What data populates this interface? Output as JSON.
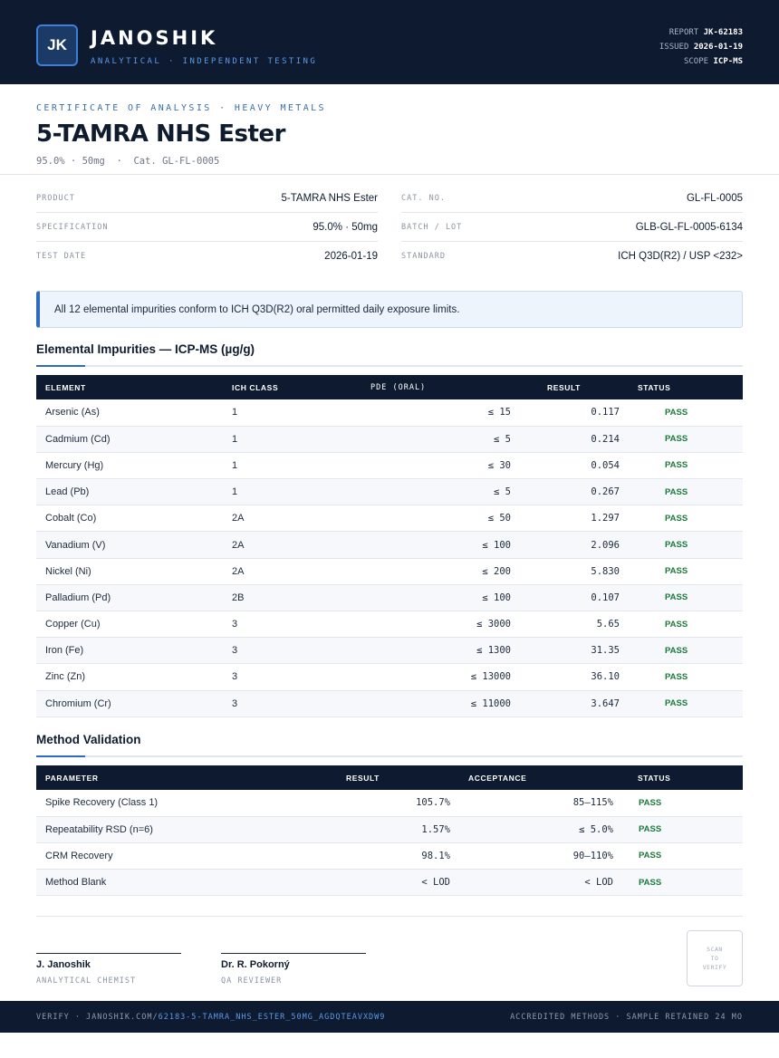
{
  "header": {
    "logo_initials": "JK",
    "brand": "JANOSHIK",
    "brand_sub": "ANALYTICAL · INDEPENDENT TESTING",
    "meta": [
      {
        "label": "REPORT",
        "value": "JK-62183"
      },
      {
        "label": "ISSUED",
        "value": "2026-01-19"
      },
      {
        "label": "SCOPE",
        "value": "ICP-MS"
      }
    ]
  },
  "doc": {
    "eyebrow": "CERTIFICATE OF ANALYSIS · HEAVY METALS",
    "title": "5-TAMRA NHS Ester",
    "subtitle": "95.0% · 50mg  ·  Cat. GL-FL-0005"
  },
  "info": {
    "left": [
      {
        "label": "PRODUCT",
        "value": "5-TAMRA NHS Ester"
      },
      {
        "label": "SPECIFICATION",
        "value": "95.0% · 50mg"
      },
      {
        "label": "TEST DATE",
        "value": "2026-01-19"
      }
    ],
    "right": [
      {
        "label": "CAT. NO.",
        "value": "GL-FL-0005"
      },
      {
        "label": "BATCH / LOT",
        "value": "GLB-GL-FL-0005-6134"
      },
      {
        "label": "STANDARD",
        "value": "ICH Q3D(R2) / USP <232>"
      }
    ]
  },
  "notice": "All 12 elemental impurities conform to ICH Q3D(R2) oral permitted daily exposure limits.",
  "impurities": {
    "title": "Elemental Impurities — ICP-MS (µg/g)",
    "headers": [
      "ELEMENT",
      "ICH CLASS",
      "PDE (ORAL)",
      "RESULT",
      "STATUS"
    ],
    "rows": [
      [
        "Arsenic (As)",
        "1",
        "≤ 15",
        "0.117",
        "PASS"
      ],
      [
        "Cadmium (Cd)",
        "1",
        "≤ 5",
        "0.214",
        "PASS"
      ],
      [
        "Mercury (Hg)",
        "1",
        "≤ 30",
        "0.054",
        "PASS"
      ],
      [
        "Lead (Pb)",
        "1",
        "≤ 5",
        "0.267",
        "PASS"
      ],
      [
        "Cobalt (Co)",
        "2A",
        "≤ 50",
        "1.297",
        "PASS"
      ],
      [
        "Vanadium (V)",
        "2A",
        "≤ 100",
        "2.096",
        "PASS"
      ],
      [
        "Nickel (Ni)",
        "2A",
        "≤ 200",
        "5.830",
        "PASS"
      ],
      [
        "Palladium (Pd)",
        "2B",
        "≤ 100",
        "0.107",
        "PASS"
      ],
      [
        "Copper (Cu)",
        "3",
        "≤ 3000",
        "5.65",
        "PASS"
      ],
      [
        "Iron (Fe)",
        "3",
        "≤ 1300",
        "31.35",
        "PASS"
      ],
      [
        "Zinc (Zn)",
        "3",
        "≤ 13000",
        "36.10",
        "PASS"
      ],
      [
        "Chromium (Cr)",
        "3",
        "≤ 11000",
        "3.647",
        "PASS"
      ]
    ]
  },
  "validation": {
    "title": "Method Validation",
    "headers": [
      "PARAMETER",
      "RESULT",
      "ACCEPTANCE",
      "STATUS"
    ],
    "rows": [
      [
        "Spike Recovery (Class 1)",
        "105.7%",
        "85–115%",
        "PASS"
      ],
      [
        "Repeatability RSD (n=6)",
        "1.57%",
        "≤ 5.0%",
        "PASS"
      ],
      [
        "CRM Recovery",
        "98.1%",
        "90–110%",
        "PASS"
      ],
      [
        "Method Blank",
        "< LOD",
        "< LOD",
        "PASS"
      ]
    ]
  },
  "signatures": [
    {
      "name": "J. Janoshik",
      "role": "ANALYTICAL CHEMIST"
    },
    {
      "name": "Dr. R. Pokorný",
      "role": "QA REVIEWER"
    }
  ],
  "qr": {
    "line1": "SCAN",
    "line2": "TO",
    "line3": "VERIFY"
  },
  "footer": {
    "verify_prefix": "VERIFY · JANOSHIK.COM/",
    "verify_link": "62183-5-TAMRA_NHS_ESTER_50MG_AGDQTEAVXDW9",
    "right": "ACCREDITED METHODS · SAMPLE RETAINED 24 MO"
  },
  "colors": {
    "navy": "#0e1a2f",
    "accent": "#2f6cc0",
    "pass": "#1d7a3c"
  }
}
